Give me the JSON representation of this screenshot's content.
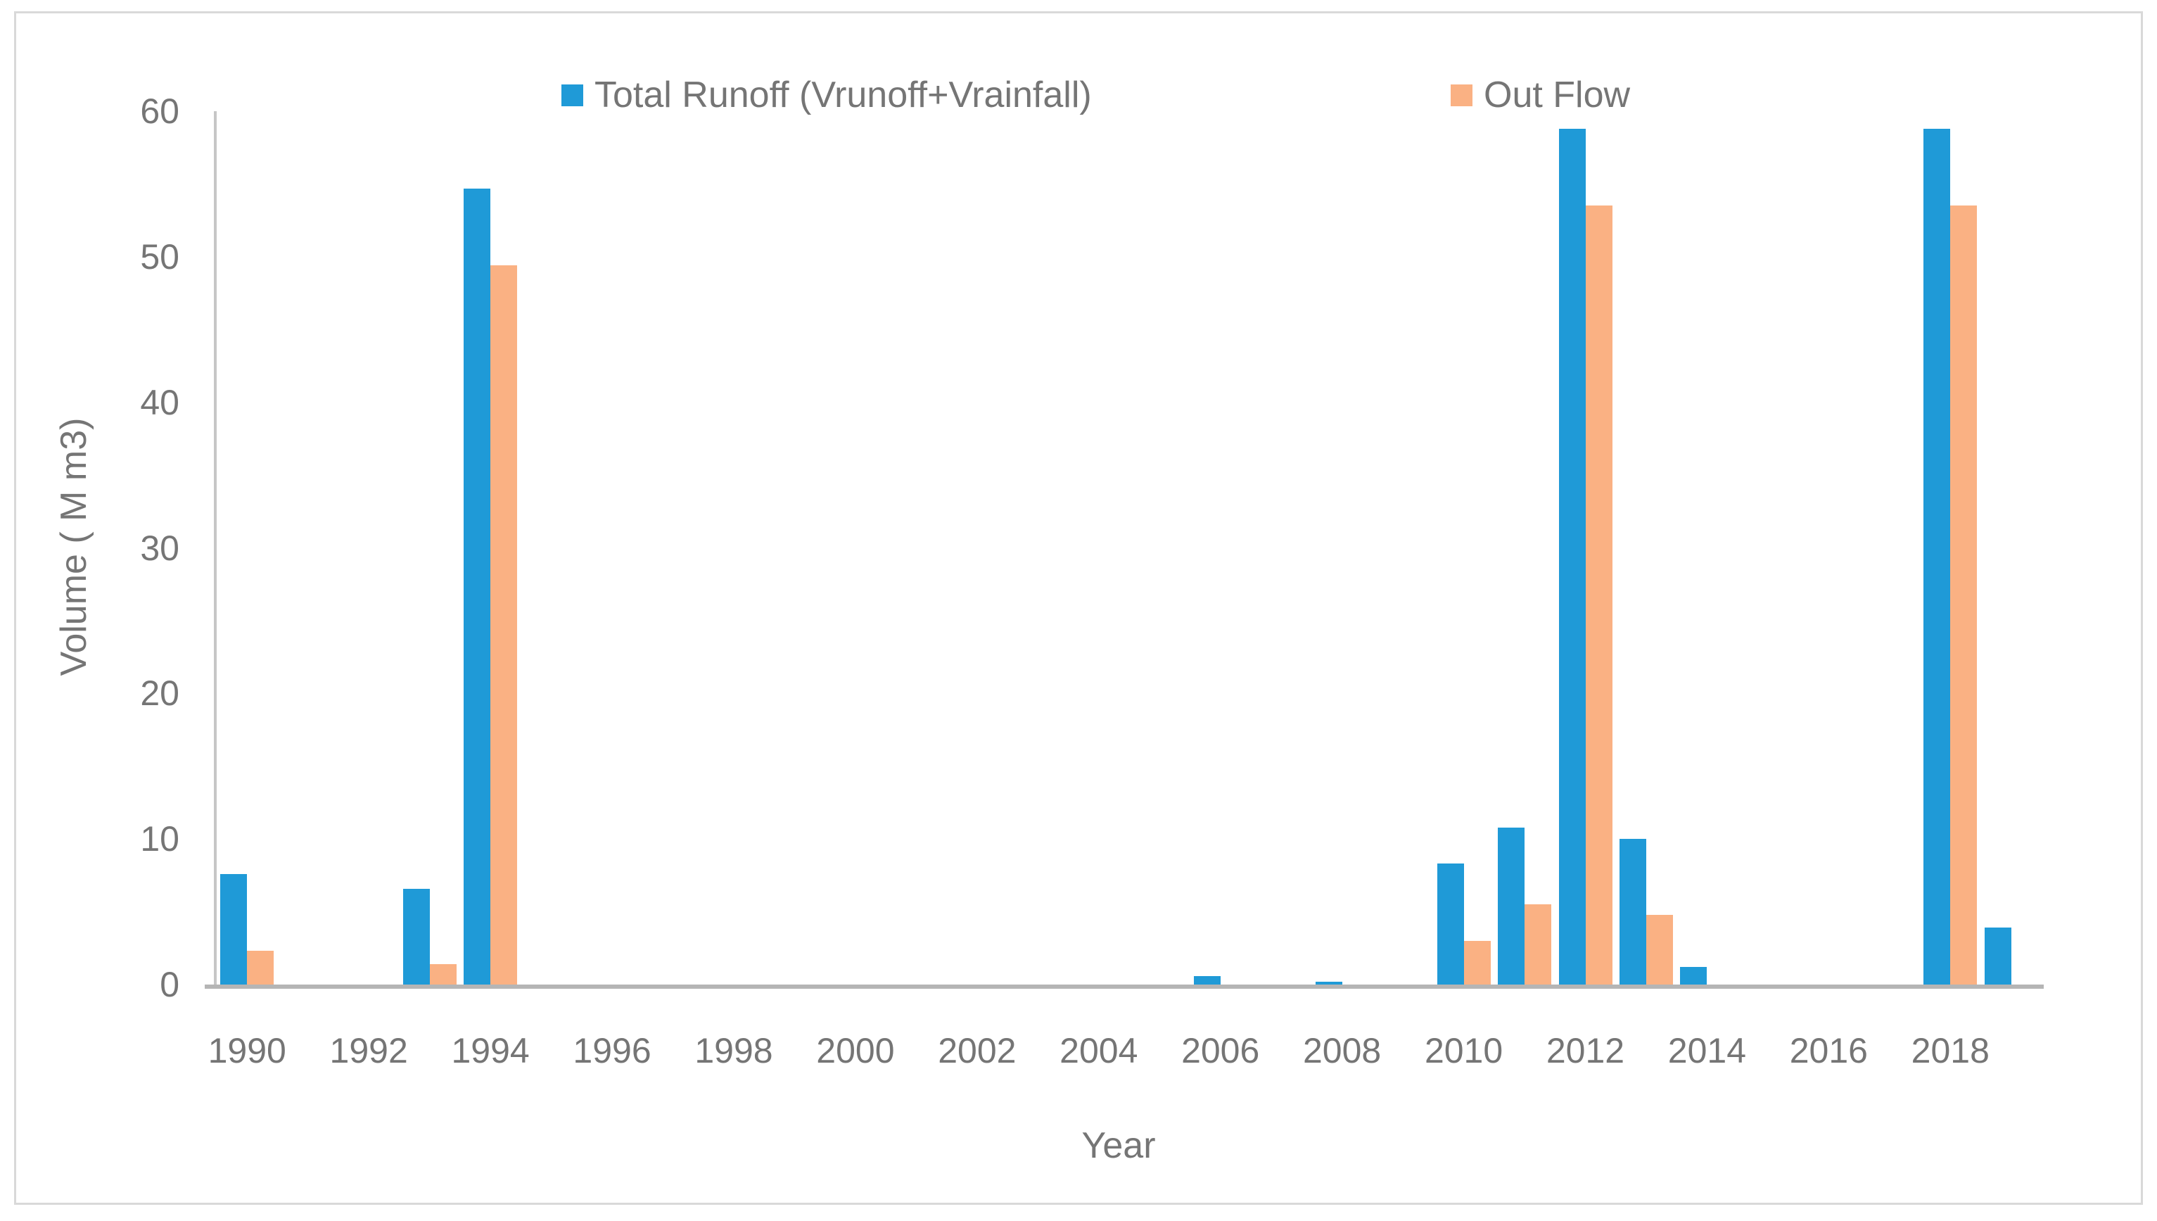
{
  "chart_data": {
    "type": "bar",
    "title": "",
    "xlabel": "Year",
    "ylabel": "Volume ( M m3)",
    "ylim": [
      0,
      60
    ],
    "yticks": [
      0,
      10,
      20,
      30,
      40,
      50,
      60
    ],
    "grid": false,
    "legend_position": "top-center",
    "categories": [
      1990,
      1991,
      1992,
      1993,
      1994,
      1995,
      1996,
      1997,
      1998,
      1999,
      2000,
      2001,
      2002,
      2003,
      2004,
      2005,
      2006,
      2007,
      2008,
      2009,
      2010,
      2011,
      2012,
      2013,
      2014,
      2015,
      2016,
      2017,
      2018,
      2019
    ],
    "x_tick_labels": [
      "1990",
      "1992",
      "1994",
      "1996",
      "1998",
      "2000",
      "2002",
      "2004",
      "2006",
      "2008",
      "2010",
      "2012",
      "2014",
      "2016",
      "2018"
    ],
    "series": [
      {
        "name": "Total Runoff (Vrunoff+Vrainfall)",
        "color": "#1F9AD7",
        "values": [
          7.6,
          0,
          0,
          6.6,
          54.7,
          0,
          0,
          0,
          0,
          0,
          0,
          0,
          0,
          0,
          0,
          0,
          0.6,
          0,
          0.2,
          0,
          8.3,
          10.8,
          58.8,
          10.0,
          1.2,
          0,
          0,
          0,
          58.8,
          3.9
        ]
      },
      {
        "name": "Out Flow",
        "color": "#FAB183",
        "values": [
          2.3,
          0,
          0,
          1.4,
          49.4,
          0,
          0,
          0,
          0,
          0,
          0,
          0,
          0,
          0,
          0,
          0,
          0,
          0,
          0,
          0,
          3.0,
          5.5,
          53.5,
          4.8,
          0,
          0,
          0,
          0,
          53.5,
          0
        ]
      }
    ]
  },
  "colors": {
    "axis_line": "#C6C6C6",
    "baseline": "#B5B5B5",
    "text": "#757575",
    "frame_border": "#D9D9D9",
    "background": "#FFFFFF"
  }
}
